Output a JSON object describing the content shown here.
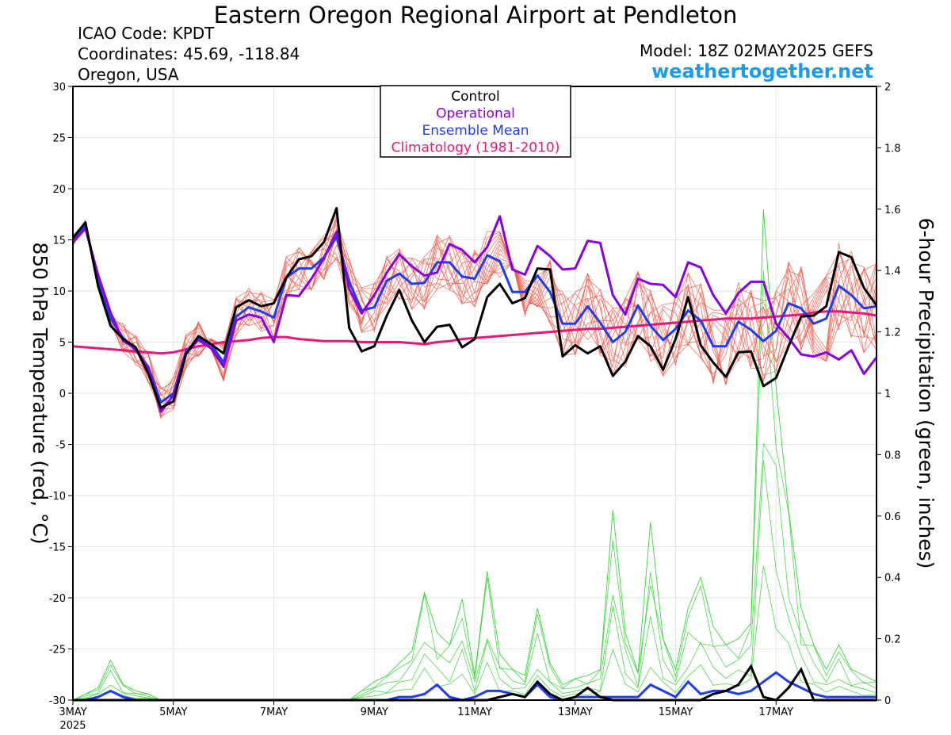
{
  "header": {
    "title": "Eastern Oregon Regional Airport at Pendleton",
    "icao": "ICAO Code: KPDT",
    "coordinates": "Coordinates: 45.69, -118.84",
    "region": "Oregon, USA",
    "model": "Model: 18Z 02MAY2025 GEFS",
    "site": "weathertogether.net"
  },
  "chart_data": {
    "type": "line",
    "ylabel_left": "850 hPa Temperature (red, °C)",
    "ylabel_right": "6-hour Precipitation (green, inches)",
    "ylim_left": [
      -30,
      30
    ],
    "ylim_right": [
      0,
      2
    ],
    "yticks_left": [
      "30",
      "25",
      "20",
      "15",
      "10",
      "5",
      "0",
      "-5",
      "-10",
      "-15",
      "-20",
      "-25",
      "-30"
    ],
    "yticks_right": [
      "2",
      "1.8",
      "1.6",
      "1.4",
      "1.2",
      "1",
      "0.8",
      "0.6",
      "0.4",
      "0.2",
      "0"
    ],
    "xlim": [
      0,
      64
    ],
    "xticks": [
      {
        "x": 0,
        "label": "3MAY",
        "sub": "2025"
      },
      {
        "x": 8,
        "label": "5MAY"
      },
      {
        "x": 16,
        "label": "7MAY"
      },
      {
        "x": 24,
        "label": "9MAY"
      },
      {
        "x": 32,
        "label": "11MAY"
      },
      {
        "x": 40,
        "label": "13MAY"
      },
      {
        "x": 48,
        "label": "15MAY"
      },
      {
        "x": 56,
        "label": "17MAY"
      }
    ],
    "legend": [
      {
        "label": "Control",
        "color": "#000000"
      },
      {
        "label": "Operational",
        "color": "#8a00e0"
      },
      {
        "label": "Ensemble Mean",
        "color": "#1f3cf0"
      },
      {
        "label": "Climatology (1981-2010)",
        "color": "#e8187a"
      }
    ],
    "colors": {
      "control": "#000000",
      "operational": "#8a00e0",
      "mean": "#1f3cf0",
      "climatology": "#e8187a",
      "members": "#f05a4a",
      "precip_members": "#3ad43a"
    },
    "grid": true,
    "series": [
      {
        "name": "Control",
        "values": [
          15.2,
          16.7,
          10.5,
          6.6,
          5.3,
          4.5,
          1.9,
          -1.4,
          -0.8,
          3.8,
          5.6,
          4.8,
          3.9,
          8.4,
          9.1,
          8.5,
          8.8,
          11.3,
          13.1,
          13.4,
          14.8,
          18.1,
          6.4,
          4.1,
          4.6,
          7.6,
          10.1,
          7.1,
          5.0,
          6.5,
          6.7,
          4.5,
          5.3,
          9.4,
          10.7,
          8.8,
          9.3,
          12.2,
          12.1,
          3.6,
          4.7,
          3.9,
          4.6,
          1.7,
          3.1,
          5.6,
          4.6,
          2.3,
          5.3,
          9.4,
          4.7,
          3.0,
          1.6,
          4.0,
          4.1,
          0.7,
          1.5,
          4.6,
          7.5,
          7.6,
          8.5,
          13.8,
          13.3,
          10.3,
          8.6
        ]
      },
      {
        "name": "Operational",
        "values": [
          14.8,
          16.1,
          11.6,
          7.9,
          5.1,
          4.4,
          2.4,
          -1.8,
          -0.2,
          3.9,
          5.2,
          4.4,
          2.6,
          7.1,
          7.7,
          7.4,
          5.0,
          9.6,
          9.5,
          11.2,
          13.2,
          15.8,
          10.2,
          7.8,
          9.6,
          11.8,
          13.6,
          12.4,
          11.5,
          11.8,
          14.6,
          14.0,
          12.8,
          14.3,
          17.3,
          12.1,
          11.6,
          14.4,
          13.4,
          12.1,
          12.2,
          14.9,
          14.7,
          9.6,
          7.7,
          11.2,
          10.7,
          10.6,
          9.4,
          12.8,
          12.3,
          9.6,
          7.8,
          9.8,
          10.9,
          10.9,
          6.8,
          5.4,
          3.8,
          3.6,
          4.0,
          3.3,
          4.2,
          1.9,
          3.5
        ]
      },
      {
        "name": "Ensemble Mean",
        "values": [
          14.9,
          16.4,
          11.2,
          7.3,
          5.4,
          4.2,
          2.6,
          -0.9,
          0.0,
          4.1,
          5.3,
          4.8,
          3.0,
          7.5,
          8.4,
          8.0,
          7.4,
          11.3,
          12.2,
          12.2,
          13.3,
          15.3,
          10.9,
          8.1,
          8.4,
          11.0,
          11.7,
          10.7,
          10.8,
          12.8,
          12.8,
          11.4,
          11.2,
          13.5,
          12.9,
          9.9,
          9.9,
          11.5,
          9.9,
          6.8,
          6.8,
          8.5,
          6.9,
          5.0,
          6.0,
          8.6,
          6.6,
          5.2,
          6.3,
          8.1,
          7.1,
          4.6,
          4.6,
          7.0,
          6.2,
          5.1,
          6.1,
          8.8,
          8.3,
          6.8,
          7.3,
          10.5,
          9.6,
          8.3,
          8.5
        ]
      },
      {
        "name": "Climatology (1981-2010)",
        "values": [
          4.6,
          4.5,
          4.4,
          4.3,
          4.2,
          4.1,
          4.0,
          3.9,
          4.0,
          4.3,
          4.6,
          4.8,
          5.0,
          5.1,
          5.2,
          5.4,
          5.5,
          5.5,
          5.3,
          5.2,
          5.1,
          5.1,
          5.1,
          5.0,
          5.0,
          5.0,
          5.0,
          4.9,
          4.8,
          5.0,
          5.1,
          5.3,
          5.4,
          5.5,
          5.6,
          5.7,
          5.8,
          5.9,
          6.0,
          6.1,
          6.2,
          6.3,
          6.3,
          6.4,
          6.5,
          6.6,
          6.7,
          6.8,
          6.9,
          7.0,
          7.1,
          7.2,
          7.3,
          7.3,
          7.3,
          7.4,
          7.5,
          7.6,
          7.7,
          7.9,
          8.0,
          8.0,
          7.9,
          7.8,
          7.6
        ]
      }
    ],
    "precip_series": [
      {
        "name": "Control",
        "values": [
          0,
          0,
          0,
          0,
          0,
          0,
          0,
          0,
          0,
          0,
          0,
          0,
          0,
          0,
          0,
          0,
          0,
          0,
          0,
          0,
          0,
          0,
          0,
          0,
          0,
          0,
          0,
          0,
          0,
          0,
          0,
          0,
          0,
          0,
          0.01,
          0.02,
          0.01,
          0.06,
          0.02,
          0,
          0.01,
          0.04,
          0.01,
          0,
          0,
          0,
          0,
          0,
          0,
          0,
          0,
          0.02,
          0.03,
          0.05,
          0.11,
          0.01,
          0,
          0.04,
          0.1,
          0,
          0,
          0,
          0,
          0,
          0
        ]
      },
      {
        "name": "Ensemble Mean",
        "values": [
          0,
          0,
          0.01,
          0.03,
          0.01,
          0,
          0,
          0,
          0,
          0,
          0,
          0,
          0,
          0,
          0,
          0,
          0,
          0,
          0,
          0,
          0,
          0,
          0,
          0,
          0,
          0,
          0.01,
          0.01,
          0.02,
          0.05,
          0.01,
          0,
          0.01,
          0.03,
          0.03,
          0.02,
          0.01,
          0.05,
          0.01,
          0,
          0.01,
          0.01,
          0.01,
          0.01,
          0.01,
          0.01,
          0.05,
          0.03,
          0.01,
          0.06,
          0.02,
          0.03,
          0.03,
          0.02,
          0.03,
          0.06,
          0.09,
          0.06,
          0.04,
          0.02,
          0.01,
          0.01,
          0.01,
          0.01,
          0.01
        ]
      },
      {
        "name": "Member peaks",
        "values": [
          0,
          0.02,
          0.04,
          0.13,
          0.05,
          0.03,
          0.02,
          0,
          0,
          0,
          0,
          0,
          0,
          0,
          0,
          0,
          0,
          0,
          0,
          0,
          0,
          0,
          0,
          0.03,
          0.06,
          0.08,
          0.12,
          0.16,
          0.35,
          0.22,
          0.18,
          0.33,
          0.08,
          0.42,
          0.15,
          0.1,
          0.08,
          0.3,
          0.12,
          0.05,
          0.07,
          0.08,
          0.1,
          0.62,
          0.22,
          0.09,
          0.58,
          0.2,
          0.1,
          0.3,
          0.4,
          0.24,
          0.18,
          0.2,
          0.25,
          1.6,
          1.02,
          0.62,
          0.3,
          0.18,
          0.1,
          0.18,
          0.1,
          0.08,
          0.06
        ]
      }
    ]
  }
}
